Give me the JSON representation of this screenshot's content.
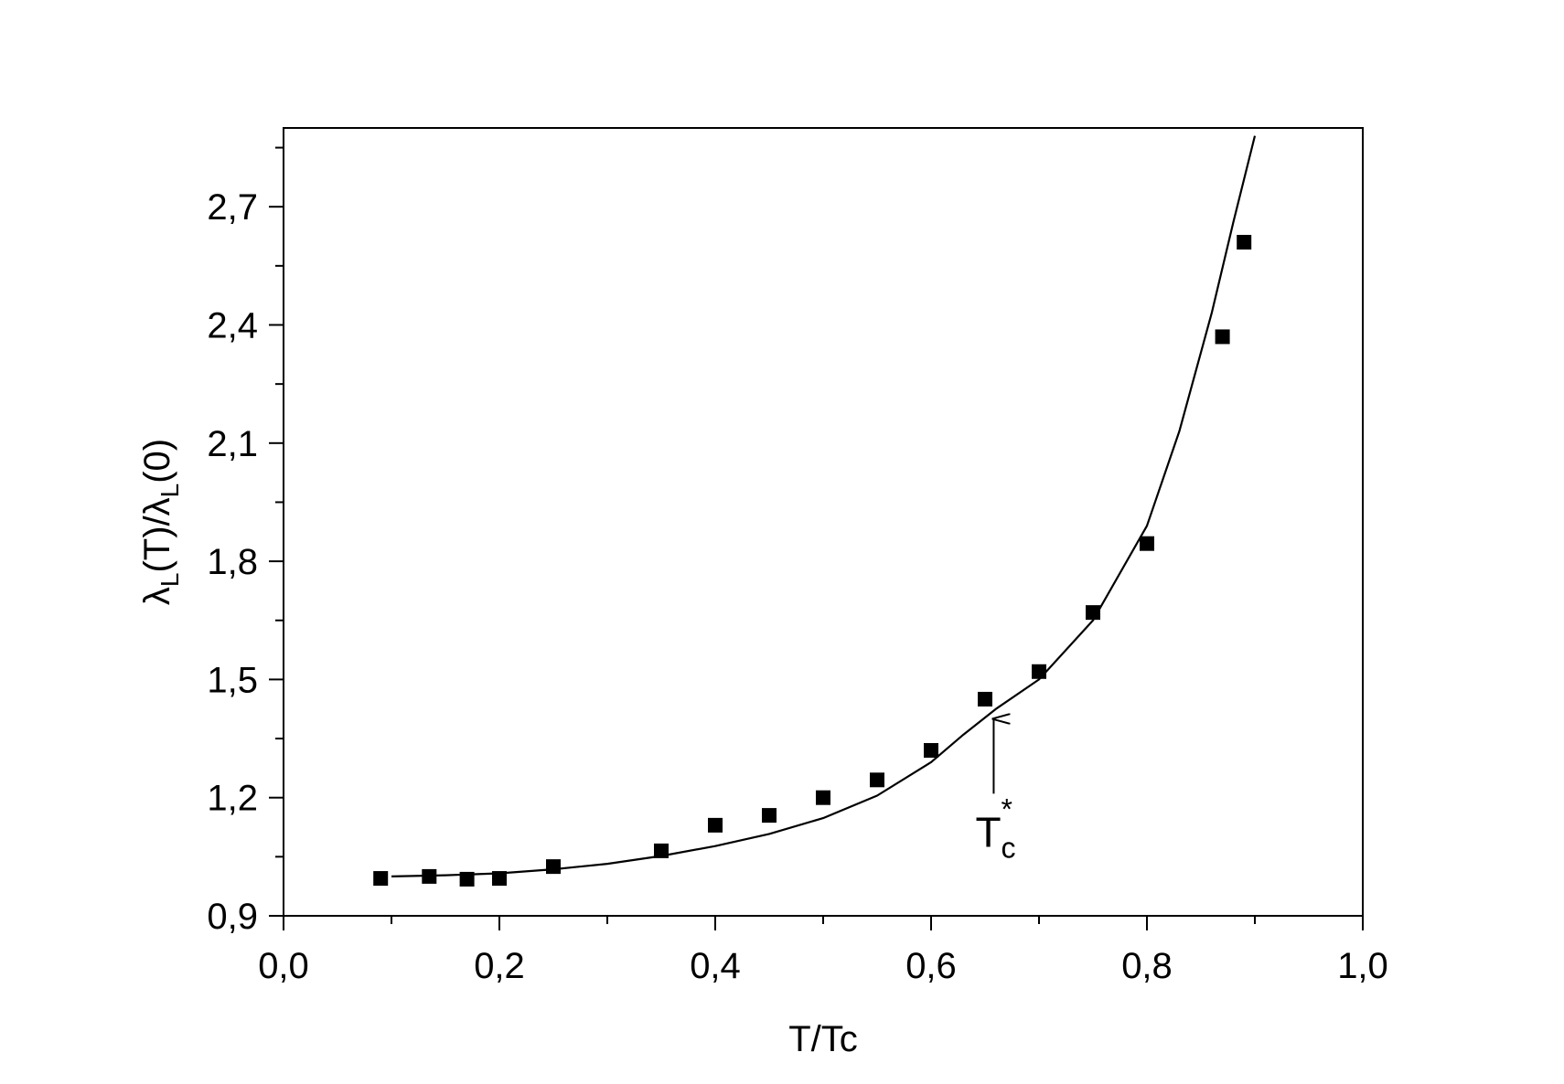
{
  "chart_data": {
    "type": "scatter",
    "xlabel": "T/Tc",
    "ylabel_parts": {
      "lambda": "λ",
      "sub": "L",
      "numerator_arg": "(T)/",
      "denominator_arg": "(0)"
    },
    "xlim": [
      0.0,
      1.0
    ],
    "ylim": [
      0.9,
      2.9
    ],
    "x_ticks": [
      {
        "value": 0.0,
        "label": "0,0"
      },
      {
        "value": 0.2,
        "label": "0,2"
      },
      {
        "value": 0.4,
        "label": "0,4"
      },
      {
        "value": 0.6,
        "label": "0,6"
      },
      {
        "value": 0.8,
        "label": "0,8"
      },
      {
        "value": 1.0,
        "label": "1,0"
      }
    ],
    "y_ticks": [
      {
        "value": 0.9,
        "label": "0,9"
      },
      {
        "value": 1.2,
        "label": "1,2"
      },
      {
        "value": 1.5,
        "label": "1,5"
      },
      {
        "value": 1.8,
        "label": "1,8"
      },
      {
        "value": 2.1,
        "label": "2,1"
      },
      {
        "value": 2.4,
        "label": "2,4"
      },
      {
        "value": 2.7,
        "label": "2,7"
      }
    ],
    "grid": false,
    "series": [
      {
        "kind": "markers",
        "marker": "square",
        "color": "#000000",
        "points": [
          {
            "x": 0.09,
            "y": 0.995
          },
          {
            "x": 0.135,
            "y": 1.0
          },
          {
            "x": 0.17,
            "y": 0.993
          },
          {
            "x": 0.2,
            "y": 0.995
          },
          {
            "x": 0.25,
            "y": 1.025
          },
          {
            "x": 0.35,
            "y": 1.065
          },
          {
            "x": 0.4,
            "y": 1.13
          },
          {
            "x": 0.45,
            "y": 1.155
          },
          {
            "x": 0.5,
            "y": 1.2
          },
          {
            "x": 0.55,
            "y": 1.245
          },
          {
            "x": 0.6,
            "y": 1.32
          },
          {
            "x": 0.65,
            "y": 1.45
          },
          {
            "x": 0.7,
            "y": 1.52
          },
          {
            "x": 0.75,
            "y": 1.67
          },
          {
            "x": 0.8,
            "y": 1.845
          },
          {
            "x": 0.87,
            "y": 2.37
          },
          {
            "x": 0.89,
            "y": 2.61
          }
        ]
      },
      {
        "kind": "line",
        "color": "#000000",
        "points": [
          {
            "x": 0.1,
            "y": 1.0
          },
          {
            "x": 0.15,
            "y": 1.003
          },
          {
            "x": 0.2,
            "y": 1.008
          },
          {
            "x": 0.25,
            "y": 1.018
          },
          {
            "x": 0.3,
            "y": 1.032
          },
          {
            "x": 0.35,
            "y": 1.052
          },
          {
            "x": 0.4,
            "y": 1.077
          },
          {
            "x": 0.45,
            "y": 1.108
          },
          {
            "x": 0.5,
            "y": 1.148
          },
          {
            "x": 0.55,
            "y": 1.205
          },
          {
            "x": 0.6,
            "y": 1.29
          },
          {
            "x": 0.63,
            "y": 1.36
          },
          {
            "x": 0.66,
            "y": 1.425
          },
          {
            "x": 0.7,
            "y": 1.5
          },
          {
            "x": 0.75,
            "y": 1.65
          },
          {
            "x": 0.8,
            "y": 1.89
          },
          {
            "x": 0.83,
            "y": 2.13
          },
          {
            "x": 0.86,
            "y": 2.43
          },
          {
            "x": 0.88,
            "y": 2.66
          },
          {
            "x": 0.9,
            "y": 2.88
          }
        ]
      }
    ],
    "annotations": [
      {
        "text_main": "T",
        "text_sub": "c",
        "text_sup": "*",
        "arrow_from": {
          "x": 0.658,
          "y": 1.21
        },
        "arrow_to": {
          "x": 0.658,
          "y": 1.4
        }
      }
    ]
  }
}
